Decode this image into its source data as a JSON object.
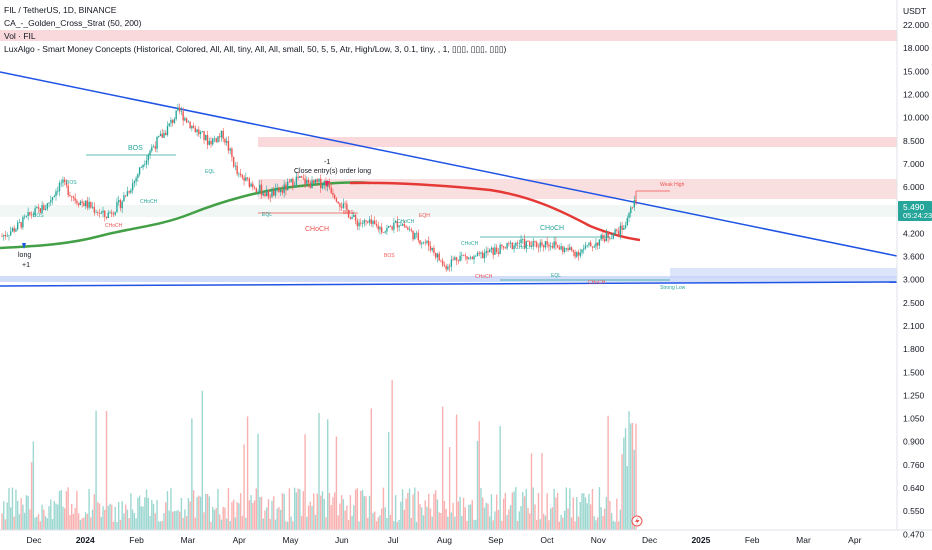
{
  "legend": {
    "symbol_line": "FIL / TetherUS, 1D, BINANCE",
    "indicator1": "CA_-_Golden_Cross_Strat (50, 200)",
    "indicator2": "Vol · FIL",
    "indicator3": "LuxAlgo - Smart Money Concepts (Historical, Colored, All, All, tiny, All, All, small, 50, 5, 5, Atr, High/Low, 3, 0.1, tiny, , 1, ▯▯▯, ▯▯▯, ▯▯▯)"
  },
  "axis": {
    "currency": "USDT",
    "current_price": "5.490",
    "countdown": "05:24:23"
  },
  "colors": {
    "up": "#26a69a",
    "down": "#ef5350",
    "trendline": "#1e53e5",
    "sma_fast": "#43a047",
    "sma_slow": "#e53935",
    "zone_red": "#f7c9cc",
    "zone_blue": "#c5d4f7",
    "price_badge": "#26a69a"
  },
  "chart_data": {
    "type": "candlestick",
    "price_ticks": [
      "22.000",
      "18.000",
      "15.000",
      "12.000",
      "10.000",
      "8.500",
      "7.000",
      "6.000",
      "5.000",
      "4.200",
      "3.600",
      "3.000",
      "2.500",
      "2.100",
      "1.800",
      "1.500",
      "1.250",
      "1.050",
      "0.900",
      "0.760",
      "0.640",
      "0.550",
      "0.470"
    ],
    "time_ticks": [
      "Dec",
      "2024",
      "Feb",
      "Mar",
      "Apr",
      "May",
      "Jun",
      "Jul",
      "Aug",
      "Sep",
      "Oct",
      "Nov",
      "Dec",
      "2025",
      "Feb",
      "Mar",
      "Apr"
    ],
    "labels": {
      "bos": "BOS",
      "choch": "CHoCH",
      "eql": "EQL",
      "eqh": "EQH",
      "weak_high": "Weak High",
      "strong_low": "Strong Low",
      "long": "long",
      "plus_one": "+1",
      "minus_one": "-1",
      "close_entry": "Close entry(s) order long"
    },
    "series": [
      {
        "name": "FIL / TetherUS",
        "values": [
          4.2,
          4.5,
          5.0,
          5.3,
          6.4,
          5.6,
          5.3,
          4.9,
          5.4,
          6.5,
          8.2,
          9.4,
          11.2,
          9.8,
          8.8,
          9.3,
          6.7,
          6.3,
          5.8,
          6.0,
          6.6,
          6.3,
          6.4,
          5.4,
          4.7,
          4.6,
          4.4,
          4.7,
          4.2,
          3.9,
          3.3,
          3.6,
          3.5,
          3.7,
          3.8,
          4.0,
          3.9,
          4.0,
          3.8,
          3.7,
          3.9,
          4.2,
          4.4,
          5.5
        ]
      }
    ]
  }
}
